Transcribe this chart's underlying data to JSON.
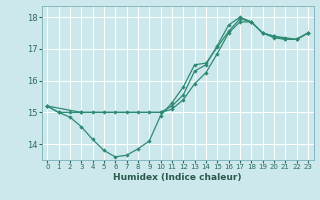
{
  "xlabel": "Humidex (Indice chaleur)",
  "bg_color": "#cce8ec",
  "grid_color": "#ffffff",
  "line_color": "#2e8b72",
  "xlim": [
    -0.5,
    23.5
  ],
  "ylim": [
    13.5,
    18.35
  ],
  "yticks": [
    14,
    15,
    16,
    17,
    18
  ],
  "xticks": [
    0,
    1,
    2,
    3,
    4,
    5,
    6,
    7,
    8,
    9,
    10,
    11,
    12,
    13,
    14,
    15,
    16,
    17,
    18,
    19,
    20,
    21,
    22,
    23
  ],
  "line1_x": [
    0,
    1,
    2,
    3,
    4,
    5,
    6,
    7,
    8,
    9,
    10,
    11,
    12,
    13,
    14,
    15,
    16,
    17,
    18,
    19,
    20,
    21,
    22,
    23
  ],
  "line1_y": [
    15.2,
    15.0,
    14.85,
    14.55,
    14.15,
    13.8,
    13.6,
    13.65,
    13.85,
    14.1,
    14.9,
    15.3,
    15.8,
    16.5,
    16.55,
    17.05,
    17.55,
    17.95,
    17.85,
    17.5,
    17.4,
    17.35,
    17.3,
    17.5
  ],
  "line2_x": [
    0,
    1,
    2,
    3,
    4,
    5,
    6,
    7,
    8,
    9,
    10,
    11,
    12,
    13,
    14,
    15,
    16,
    17,
    18,
    19,
    20,
    21,
    22,
    23
  ],
  "line2_y": [
    15.2,
    15.0,
    15.0,
    15.0,
    15.0,
    15.0,
    15.0,
    15.0,
    15.0,
    15.0,
    15.0,
    15.1,
    15.4,
    15.9,
    16.25,
    16.85,
    17.5,
    17.85,
    17.85,
    17.5,
    17.35,
    17.3,
    17.3,
    17.5
  ],
  "line3_x": [
    0,
    3,
    10,
    11,
    12,
    13,
    14,
    15,
    16,
    17,
    18,
    19,
    20,
    21,
    22,
    23
  ],
  "line3_y": [
    15.2,
    15.0,
    15.0,
    15.2,
    15.55,
    16.3,
    16.5,
    17.1,
    17.75,
    18.0,
    17.85,
    17.5,
    17.4,
    17.3,
    17.3,
    17.5
  ]
}
